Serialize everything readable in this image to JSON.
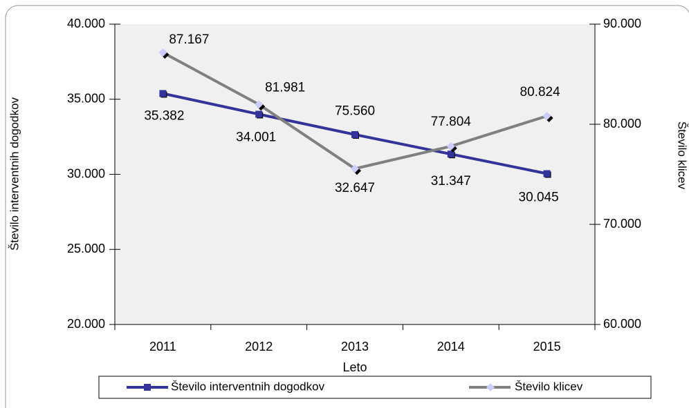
{
  "chart_data": {
    "type": "line",
    "x_label": "Leto",
    "y_label": "Število interventnih dogodkov",
    "y2_label": "Število klicev",
    "categories": [
      "2011",
      "2012",
      "2013",
      "2014",
      "2015"
    ],
    "series": [
      {
        "name": "Število interventnih dogodkov",
        "color": "#333399",
        "values": [
          35382,
          34001,
          32647,
          31347,
          30045
        ],
        "value_labels": [
          "35.382",
          "34.001",
          "32.647",
          "31.347",
          "30.045"
        ]
      },
      {
        "name": "Število klicev",
        "color": "#808080",
        "axis": "y2",
        "values": [
          87167,
          81981,
          75560,
          77804,
          80824
        ],
        "value_labels": [
          "87.167",
          "81.981",
          "75.560",
          "77.804",
          "80.824"
        ]
      }
    ],
    "ylim": [
      20000,
      40000
    ],
    "yticks": [
      {
        "value": 20000,
        "label": "20.000"
      },
      {
        "value": 25000,
        "label": "25.000"
      },
      {
        "value": 30000,
        "label": "30.000"
      },
      {
        "value": 35000,
        "label": "35.000"
      },
      {
        "value": 40000,
        "label": "40.000"
      }
    ],
    "y2lim": [
      60000,
      90000
    ],
    "y2ticks": [
      {
        "value": 60000,
        "label": "60.000"
      },
      {
        "value": 70000,
        "label": "70.000"
      },
      {
        "value": 80000,
        "label": "80.000"
      },
      {
        "value": 90000,
        "label": "90.000"
      }
    ],
    "legend": "bottom"
  }
}
